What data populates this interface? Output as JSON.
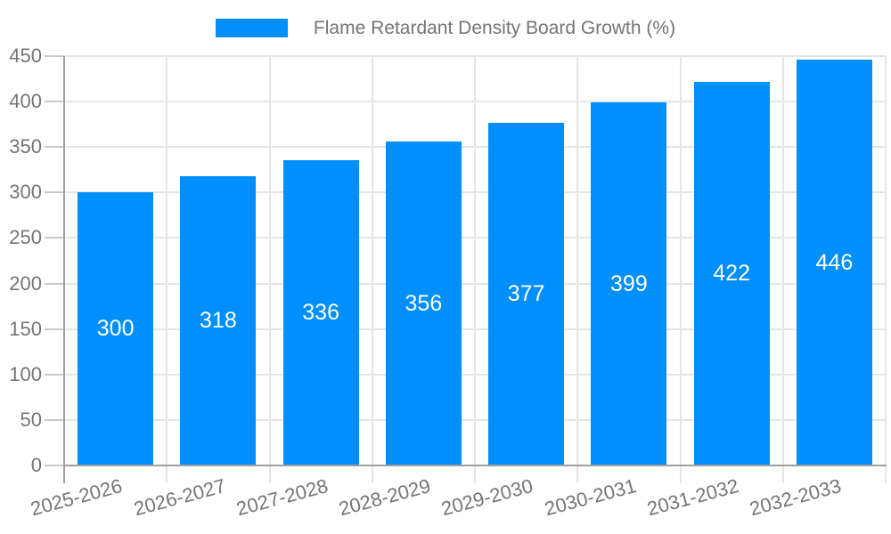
{
  "legend": {
    "items": [
      {
        "label": "Flame Retardant Density Board Growth (%)",
        "color": "#008FFB"
      }
    ]
  },
  "chart_data": {
    "type": "bar",
    "title": "Flame Retardant Density Board Growth (%)",
    "categories": [
      "2025-2026",
      "2026-2027",
      "2027-2028",
      "2028-2029",
      "2029-2030",
      "2030-2031",
      "2031-2032",
      "2032-2033"
    ],
    "series": [
      {
        "name": "Flame Retardant Density Board Growth (%)",
        "color": "#008FFB",
        "values": [
          300,
          318,
          336,
          356,
          377,
          399,
          422,
          446
        ]
      }
    ],
    "xlabel": "",
    "ylabel": "",
    "ylim": [
      0,
      450
    ],
    "yticks": [
      0,
      50,
      100,
      150,
      200,
      250,
      300,
      350,
      400,
      450
    ],
    "grid": true,
    "legend_position": "top",
    "x_label_rotation_deg": -15,
    "bar_value_label_position": "inside-center",
    "colors": {
      "bar": "#008FFB",
      "axis_label": "#757575",
      "bar_value_label": "#ffffff",
      "gridline": "#e5e5e5",
      "tick": "#c9c9c9",
      "axis_line": "#9e9e9e",
      "background": "#ffffff"
    }
  }
}
